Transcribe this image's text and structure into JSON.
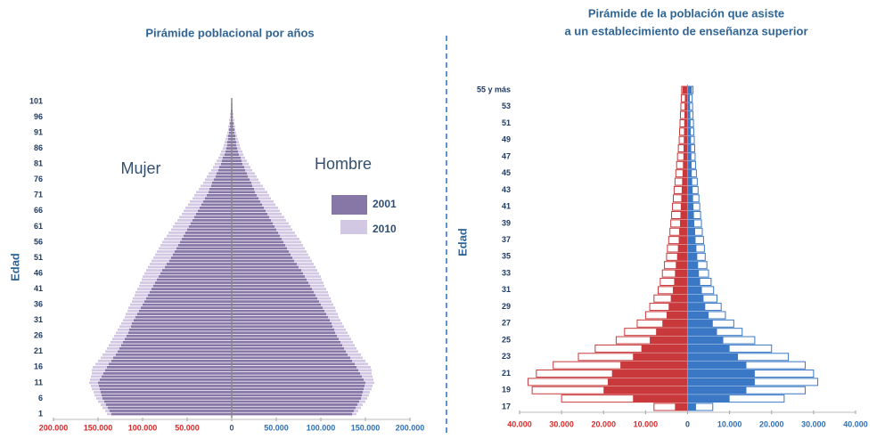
{
  "chart_data": [
    {
      "type": "pyramid",
      "title": "Pirámide poblacional por años",
      "y_label": "Edad",
      "annotations": [
        "Mujer",
        "Hombre"
      ],
      "categories": [
        1,
        null,
        null,
        null,
        null,
        6,
        null,
        null,
        null,
        null,
        11,
        null,
        null,
        null,
        null,
        16,
        null,
        null,
        null,
        null,
        21,
        null,
        null,
        null,
        null,
        26,
        null,
        null,
        null,
        null,
        31,
        null,
        null,
        null,
        null,
        36,
        null,
        null,
        null,
        null,
        41,
        null,
        null,
        null,
        null,
        46,
        null,
        null,
        null,
        null,
        51,
        null,
        null,
        null,
        null,
        56,
        null,
        null,
        null,
        null,
        61,
        null,
        null,
        null,
        null,
        66,
        null,
        null,
        null,
        null,
        71,
        null,
        null,
        null,
        null,
        76,
        null,
        null,
        null,
        null,
        81,
        null,
        null,
        null,
        null,
        86,
        null,
        null,
        null,
        null,
        91,
        null,
        null,
        null,
        null,
        96,
        null,
        null,
        null,
        null,
        101
      ],
      "xlim": [
        -200000,
        200000
      ],
      "xticks": [
        {
          "value": -200000,
          "label": "200.000"
        },
        {
          "value": -150000,
          "label": "150.000"
        },
        {
          "value": -100000,
          "label": "100.000"
        },
        {
          "value": -50000,
          "label": "50.000"
        },
        0,
        {
          "value": 50000,
          "label": "50.000"
        },
        {
          "value": 100000,
          "label": "100.000"
        },
        {
          "value": 150000,
          "label": "150.000"
        },
        {
          "value": 200000,
          "label": "200.000"
        }
      ],
      "series": [
        {
          "name": "2001",
          "color": "#8677a6",
          "values_left": [
            -135000,
            -137000,
            -139000,
            -141000,
            -143000,
            -145000,
            -146000,
            -147000,
            -148000,
            -149000,
            -150000,
            -148000,
            -146000,
            -144000,
            -142000,
            -140000,
            -138000,
            -135000,
            -133000,
            -130000,
            -128000,
            -126000,
            -124000,
            -122000,
            -120000,
            -118000,
            -116000,
            -115000,
            -113000,
            -112000,
            -110000,
            -108000,
            -106000,
            -104000,
            -102000,
            -100000,
            -98000,
            -96000,
            -94000,
            -92000,
            -90000,
            -88000,
            -86000,
            -84000,
            -82000,
            -80000,
            -78000,
            -75000,
            -73000,
            -70000,
            -68000,
            -66000,
            -64000,
            -62000,
            -60000,
            -58000,
            -56000,
            -54000,
            -52000,
            -50000,
            -48000,
            -46000,
            -44000,
            -42000,
            -40000,
            -38000,
            -36000,
            -34000,
            -32000,
            -30000,
            -28000,
            -26000,
            -25000,
            -23000,
            -22000,
            -20000,
            -18000,
            -17000,
            -15000,
            -14000,
            -12000,
            -11000,
            -10000,
            -8000,
            -7000,
            -6000,
            -5000,
            -5000,
            -4000,
            -4000,
            -3000,
            -3000,
            -2000,
            -2000,
            -1000,
            -1000,
            -1000,
            -1000,
            -500,
            -500,
            -300
          ],
          "values_right": [
            135000,
            137000,
            139000,
            141000,
            143000,
            145000,
            146000,
            147000,
            148000,
            149000,
            150000,
            148000,
            146000,
            144000,
            142000,
            140000,
            138000,
            135000,
            133000,
            130000,
            128000,
            126000,
            124000,
            122000,
            120000,
            118000,
            116000,
            115000,
            113000,
            112000,
            110000,
            108000,
            106000,
            104000,
            102000,
            100000,
            98000,
            96000,
            94000,
            92000,
            90000,
            88000,
            86000,
            84000,
            82000,
            80000,
            78000,
            75000,
            73000,
            70000,
            68000,
            66000,
            64000,
            62000,
            60000,
            58000,
            56000,
            54000,
            52000,
            50000,
            48000,
            46000,
            44000,
            42000,
            40000,
            38000,
            36000,
            34000,
            32000,
            30000,
            28000,
            26000,
            25000,
            23000,
            22000,
            20000,
            18000,
            17000,
            15000,
            14000,
            12000,
            11000,
            10000,
            8000,
            7000,
            6000,
            5000,
            5000,
            4000,
            4000,
            3000,
            3000,
            2000,
            2000,
            1000,
            1000,
            1000,
            1000,
            500,
            500,
            300
          ]
        },
        {
          "name": "2010",
          "color": "#d3c8e4",
          "values_left": [
            -140000,
            -142000,
            -145000,
            -147000,
            -150000,
            -152000,
            -154000,
            -155000,
            -157000,
            -158000,
            -160000,
            -159000,
            -158000,
            -157000,
            -157000,
            -156000,
            -153000,
            -150000,
            -147000,
            -145000,
            -142000,
            -140000,
            -138000,
            -136000,
            -134000,
            -132000,
            -130000,
            -128000,
            -126000,
            -124000,
            -122000,
            -120000,
            -119000,
            -117000,
            -116000,
            -114000,
            -112000,
            -111000,
            -109000,
            -108000,
            -106000,
            -104000,
            -103000,
            -101000,
            -100000,
            -98000,
            -96000,
            -94000,
            -92000,
            -90000,
            -88000,
            -86000,
            -84000,
            -82000,
            -80000,
            -78000,
            -76000,
            -73000,
            -71000,
            -68000,
            -66000,
            -64000,
            -61000,
            -59000,
            -56000,
            -54000,
            -52000,
            -49000,
            -47000,
            -44000,
            -42000,
            -40000,
            -37000,
            -35000,
            -32000,
            -30000,
            -28000,
            -26000,
            -23000,
            -21000,
            -19000,
            -17000,
            -15000,
            -13000,
            -12000,
            -10000,
            -9000,
            -8000,
            -7000,
            -6000,
            -5000,
            -4000,
            -4000,
            -3000,
            -3000,
            -2000,
            -2000,
            -1000,
            -1000,
            -1000,
            -500
          ],
          "values_right": [
            140000,
            142000,
            145000,
            147000,
            150000,
            152000,
            154000,
            155000,
            157000,
            158000,
            160000,
            159000,
            158000,
            157000,
            157000,
            156000,
            153000,
            150000,
            147000,
            145000,
            142000,
            140000,
            138000,
            136000,
            134000,
            132000,
            130000,
            128000,
            126000,
            124000,
            122000,
            120000,
            119000,
            117000,
            116000,
            114000,
            112000,
            111000,
            109000,
            108000,
            106000,
            104000,
            103000,
            101000,
            100000,
            98000,
            96000,
            94000,
            92000,
            90000,
            88000,
            86000,
            84000,
            82000,
            80000,
            78000,
            76000,
            73000,
            71000,
            68000,
            66000,
            64000,
            61000,
            59000,
            56000,
            54000,
            52000,
            49000,
            47000,
            44000,
            42000,
            40000,
            37000,
            35000,
            32000,
            30000,
            28000,
            26000,
            23000,
            21000,
            19000,
            17000,
            15000,
            13000,
            12000,
            10000,
            9000,
            8000,
            7000,
            6000,
            5000,
            4000,
            4000,
            3000,
            3000,
            2000,
            2000,
            1000,
            1000,
            1000,
            500
          ]
        }
      ]
    },
    {
      "type": "bar",
      "orientation": "horizontal",
      "title": [
        "Pirámide de la población que asiste",
        "a un establecimiento de enseñanza superior"
      ],
      "y_label": "Edad",
      "categories": [
        17,
        null,
        19,
        null,
        21,
        null,
        23,
        null,
        25,
        null,
        27,
        null,
        29,
        null,
        31,
        null,
        33,
        null,
        35,
        null,
        37,
        null,
        39,
        null,
        41,
        null,
        43,
        null,
        45,
        null,
        47,
        null,
        49,
        null,
        51,
        null,
        53,
        null,
        "55 y más"
      ],
      "xlim": [
        -40000,
        40000
      ],
      "xticks": [
        {
          "value": -40000,
          "label": "40.000"
        },
        {
          "value": -30000,
          "label": "30.000"
        },
        {
          "value": -20000,
          "label": "20.000"
        },
        {
          "value": -10000,
          "label": "10.000"
        },
        0,
        {
          "value": 10000,
          "label": "10.000"
        },
        {
          "value": 20000,
          "label": "20.000"
        },
        {
          "value": 30000,
          "label": "30.000"
        },
        {
          "value": 40000,
          "label": "40.000"
        }
      ],
      "series": [
        {
          "color": "#c9393b",
          "outline": true,
          "values": [
            -8000,
            -30000,
            -37000,
            -38000,
            -36000,
            -32000,
            -26000,
            -22000,
            -17000,
            -15000,
            -12000,
            -10000,
            -9000,
            -8000,
            -7000,
            -6500,
            -6000,
            -5500,
            -5000,
            -4800,
            -4500,
            -4200,
            -4000,
            -3800,
            -3600,
            -3400,
            -3200,
            -3000,
            -2800,
            -2600,
            -2400,
            -2200,
            -2000,
            -1900,
            -1800,
            -1700,
            -1600,
            -1500,
            -1400
          ]
        },
        {
          "color": "#c9393b",
          "values": [
            -3000,
            -13000,
            -20000,
            -19000,
            -18000,
            -16000,
            -13000,
            -11000,
            -9000,
            -7500,
            -6000,
            -5000,
            -4500,
            -4000,
            -3500,
            -3200,
            -3000,
            -2800,
            -2500,
            -2300,
            -2100,
            -2000,
            -1800,
            -1700,
            -1600,
            -1500,
            -1400,
            -1300,
            -1200,
            -1100,
            -1000,
            -950,
            -900,
            -850,
            -800,
            -750,
            -700,
            -650,
            -1200
          ]
        },
        {
          "color": "#3a78c6",
          "outline": true,
          "values": [
            6000,
            23000,
            28000,
            31000,
            30000,
            28000,
            24000,
            20000,
            16000,
            13000,
            11000,
            9000,
            8000,
            7000,
            6200,
            5600,
            5000,
            4600,
            4200,
            4000,
            3800,
            3500,
            3300,
            3100,
            2900,
            2700,
            2500,
            2300,
            2100,
            1900,
            1800,
            1700,
            1600,
            1500,
            1400,
            1300,
            1200,
            1100,
            1300
          ]
        },
        {
          "color": "#3a78c6",
          "values": [
            2000,
            10000,
            14000,
            16000,
            16000,
            14000,
            12000,
            10000,
            8500,
            7000,
            6000,
            5000,
            4200,
            3800,
            3400,
            3000,
            2700,
            2500,
            2300,
            2100,
            1900,
            1800,
            1600,
            1500,
            1400,
            1300,
            1200,
            1100,
            1000,
            950,
            900,
            850,
            800,
            750,
            700,
            650,
            600,
            550,
            1000
          ]
        }
      ]
    }
  ]
}
